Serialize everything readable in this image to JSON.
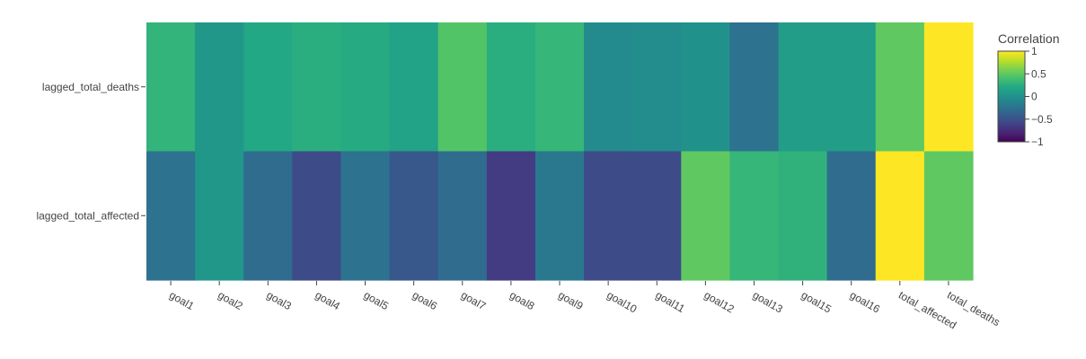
{
  "chart_data": {
    "type": "heatmap",
    "x": [
      "goal1",
      "goal2",
      "goal3",
      "goal4",
      "goal5",
      "goal6",
      "goal7",
      "goal8",
      "goal9",
      "goal10",
      "goal11",
      "goal12",
      "goal13",
      "goal15",
      "goal16",
      "total_affected",
      "total_deaths"
    ],
    "y": [
      "lagged_total_deaths",
      "lagged_total_affected"
    ],
    "z": [
      [
        0.3,
        0.05,
        0.2,
        0.25,
        0.22,
        0.15,
        0.45,
        0.25,
        0.32,
        -0.05,
        -0.03,
        0.0,
        -0.25,
        0.1,
        0.1,
        0.5,
        1.0
      ],
      [
        -0.25,
        0.05,
        -0.3,
        -0.55,
        -0.25,
        -0.45,
        -0.3,
        -0.65,
        -0.2,
        -0.55,
        -0.55,
        0.5,
        0.32,
        0.28,
        -0.3,
        1.0,
        0.5
      ]
    ],
    "colorscale": "Viridis",
    "zmin": -1,
    "zmax": 1,
    "colorbar": {
      "title": "Correlation",
      "tickvals": [
        1,
        0.5,
        0,
        -0.5,
        -1
      ],
      "ticktext": [
        "1",
        "0.5",
        "0",
        "−0.5",
        "−1"
      ]
    },
    "title": "",
    "xlabel": "",
    "ylabel": ""
  }
}
